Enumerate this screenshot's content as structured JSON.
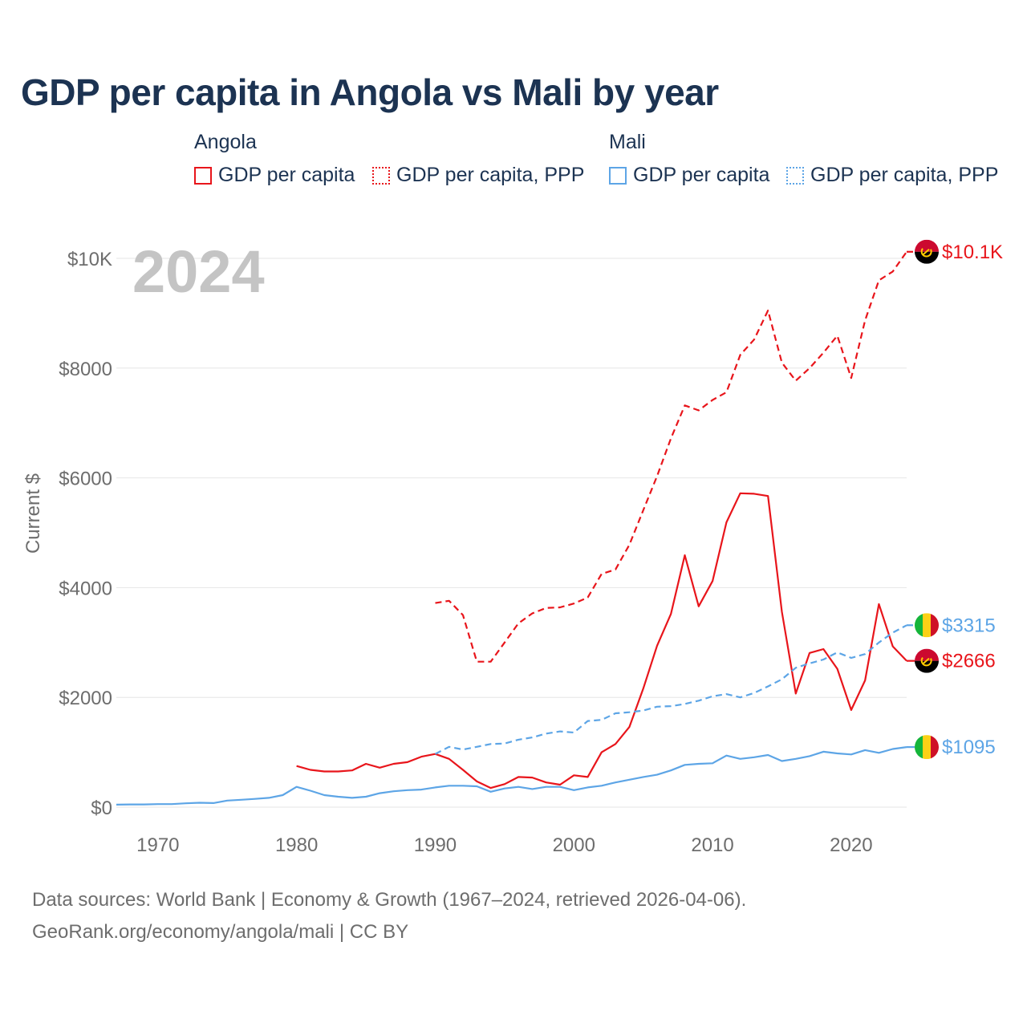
{
  "title": "GDP per capita in Angola vs Mali by year",
  "legend": {
    "groups": [
      {
        "country": "Angola",
        "items": [
          "GDP per capita",
          "GDP per capita, PPP"
        ]
      },
      {
        "country": "Mali",
        "items": [
          "GDP per capita",
          "GDP per capita, PPP"
        ]
      }
    ]
  },
  "year_watermark": "2024",
  "source": {
    "line1": "Data sources: World Bank | Economy & Growth (1967–2024, retrieved 2026-04-06).",
    "line2": "GeoRank.org/economy/angola/mali | CC BY"
  },
  "colors": {
    "angola": "#e8151b",
    "mali": "#5da5e6",
    "grid": "#e6e6e6",
    "axis": "#6d6d6d"
  },
  "chart_data": {
    "type": "line",
    "title": "GDP per capita in Angola vs Mali by year",
    "xlabel": "",
    "ylabel": "Current $",
    "xlim": [
      1967,
      2024
    ],
    "ylim": [
      0,
      10000
    ],
    "x_ticks": [
      1970,
      1980,
      1990,
      2000,
      2010,
      2020
    ],
    "x_tick_labels": [
      "1970",
      "1980",
      "1990",
      "2000",
      "2010",
      "2020"
    ],
    "y_ticks": [
      0,
      2000,
      4000,
      6000,
      8000,
      10000
    ],
    "y_tick_labels": [
      "$0",
      "$2000",
      "$4000",
      "$6000",
      "$8000",
      "$10K"
    ],
    "series": [
      {
        "name": "Angola GDP per capita",
        "country": "angola",
        "style": "solid",
        "end_label": "$2666",
        "start_year": 1980,
        "values": [
          750,
          680,
          650,
          650,
          670,
          790,
          720,
          790,
          820,
          920,
          970,
          880,
          680,
          470,
          350,
          420,
          550,
          540,
          450,
          410,
          580,
          550,
          1000,
          1150,
          1460,
          2160,
          2940,
          3520,
          4590,
          3660,
          4120,
          5190,
          5720,
          5710,
          5670,
          3560,
          2070,
          2810,
          2880,
          2520,
          1770,
          2310,
          3700,
          2930,
          2666
        ]
      },
      {
        "name": "Angola GDP per capita, PPP",
        "country": "angola",
        "style": "dashed",
        "end_label": "$10.1K",
        "start_year": 1990,
        "values": [
          3720,
          3760,
          3500,
          2650,
          2650,
          3000,
          3350,
          3530,
          3630,
          3640,
          3710,
          3820,
          4250,
          4330,
          4780,
          5410,
          6030,
          6720,
          7320,
          7230,
          7420,
          7560,
          8240,
          8520,
          9050,
          8100,
          7770,
          8000,
          8280,
          8590,
          7820,
          8870,
          9600,
          9760,
          10120
        ]
      },
      {
        "name": "Mali GDP per capita",
        "country": "mali",
        "style": "solid",
        "end_label": "$1095",
        "start_year": 1967,
        "values": [
          45,
          50,
          50,
          55,
          55,
          70,
          80,
          75,
          120,
          135,
          150,
          170,
          220,
          370,
          300,
          220,
          190,
          170,
          190,
          255,
          290,
          310,
          320,
          360,
          390,
          390,
          380,
          280,
          340,
          370,
          330,
          370,
          370,
          310,
          360,
          390,
          450,
          500,
          550,
          590,
          670,
          770,
          790,
          800,
          940,
          880,
          910,
          950,
          840,
          880,
          930,
          1010,
          980,
          960,
          1040,
          990,
          1060,
          1095
        ]
      },
      {
        "name": "Mali GDP per capita, PPP",
        "country": "mali",
        "style": "dashed",
        "end_label": "$3315",
        "start_year": 1990,
        "values": [
          970,
          1100,
          1050,
          1100,
          1150,
          1160,
          1230,
          1270,
          1340,
          1380,
          1360,
          1570,
          1590,
          1710,
          1730,
          1760,
          1830,
          1840,
          1880,
          1940,
          2020,
          2060,
          2000,
          2080,
          2200,
          2330,
          2540,
          2620,
          2690,
          2820,
          2720,
          2790,
          3000,
          3180,
          3315
        ]
      }
    ]
  }
}
